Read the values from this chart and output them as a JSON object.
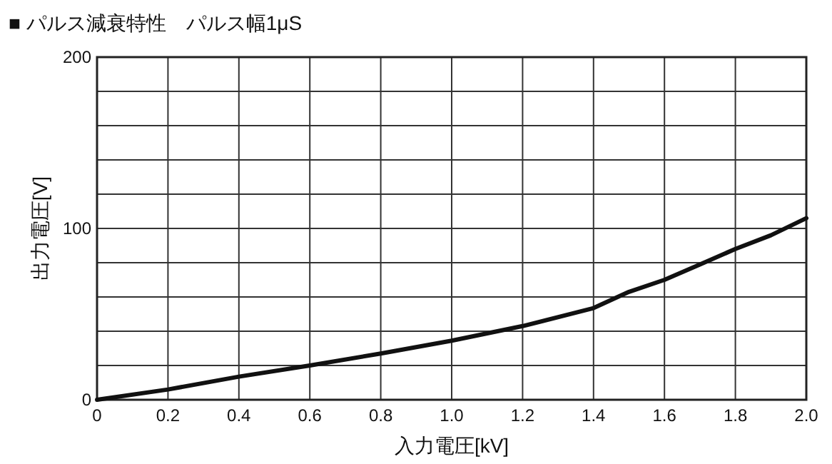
{
  "chart_data": {
    "type": "line",
    "title": "■ パルス減衰特性　パルス幅1μS",
    "xlabel": "入力電圧[kV]",
    "ylabel": "出力電圧[V]",
    "x": [
      0,
      0.2,
      0.4,
      0.6,
      0.8,
      1.0,
      1.2,
      1.4,
      1.5,
      1.6,
      1.7,
      1.8,
      1.9,
      2.0
    ],
    "series": [
      {
        "color": "#111111",
        "values": [
          0,
          6,
          13.5,
          20,
          27,
          34.5,
          43,
          53.5,
          63,
          70,
          79,
          88,
          96,
          106
        ]
      }
    ],
    "xlim": [
      0,
      2.0
    ],
    "xticks": [
      {
        "value": 0,
        "label": "0"
      },
      {
        "value": 0.2,
        "label": "0.2"
      },
      {
        "value": 0.4,
        "label": "0.4"
      },
      {
        "value": 0.6,
        "label": "0.6"
      },
      {
        "value": 0.8,
        "label": "0.8"
      },
      {
        "value": 1.0,
        "label": "1.0"
      },
      {
        "value": 1.2,
        "label": "1.2"
      },
      {
        "value": 1.4,
        "label": "1.4"
      },
      {
        "value": 1.6,
        "label": "1.6"
      },
      {
        "value": 1.8,
        "label": "1.8"
      },
      {
        "value": 2.0,
        "label": "2.0"
      }
    ],
    "ylim": [
      0,
      200
    ],
    "yticks": [
      0,
      {
        "value": 20,
        "label": null
      },
      {
        "value": 40,
        "label": null
      },
      {
        "value": 60,
        "label": null
      },
      {
        "value": 80,
        "label": null
      },
      100,
      {
        "value": 120,
        "label": null
      },
      {
        "value": 140,
        "label": null
      },
      {
        "value": 160,
        "label": null
      },
      {
        "value": 180,
        "label": null
      },
      200
    ],
    "grid": true,
    "marker": "none",
    "line_style": "solid"
  }
}
